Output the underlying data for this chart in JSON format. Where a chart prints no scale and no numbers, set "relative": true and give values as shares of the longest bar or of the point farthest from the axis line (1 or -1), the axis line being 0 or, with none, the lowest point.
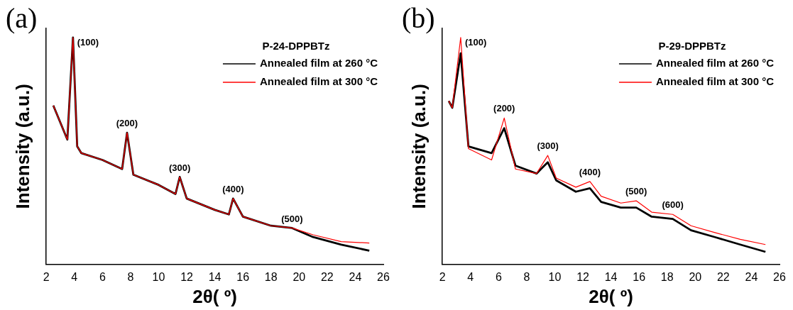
{
  "chart_data": [
    {
      "type": "line",
      "title": "(a)",
      "xlabel": "2θ( º)",
      "ylabel": "Intensity (a.u.)",
      "legend_title": "P-24-DPPBTz",
      "legend": "top right",
      "relative": true,
      "grid": false,
      "marker": "none",
      "line_style": "solid",
      "xlim": [
        2,
        26
      ],
      "xticks": [
        2,
        4,
        6,
        8,
        10,
        12,
        14,
        16,
        18,
        20,
        22,
        24,
        26
      ],
      "x": [
        2.5,
        3.5,
        3.9,
        4.2,
        4.5,
        6,
        7.4,
        7.75,
        8.2,
        10,
        11.2,
        11.5,
        12,
        14,
        15,
        15.3,
        16,
        18,
        19.5,
        21,
        23,
        25
      ],
      "series": [
        {
          "name": "Annealed film at 260 °C",
          "color": "#000000",
          "values": [
            0.7,
            0.55,
            1.0,
            0.52,
            0.49,
            0.46,
            0.42,
            0.58,
            0.395,
            0.35,
            0.31,
            0.385,
            0.29,
            0.24,
            0.22,
            0.29,
            0.21,
            0.17,
            0.16,
            0.12,
            0.087,
            0.06
          ]
        },
        {
          "name": "Annealed film at 300 °C",
          "color": "#ff0000",
          "values": [
            0.7,
            0.55,
            1.0,
            0.52,
            0.49,
            0.46,
            0.42,
            0.58,
            0.395,
            0.35,
            0.31,
            0.385,
            0.29,
            0.24,
            0.22,
            0.29,
            0.21,
            0.17,
            0.16,
            0.13,
            0.1,
            0.094
          ]
        }
      ],
      "annotations": [
        {
          "text": "(100)",
          "x": 3.9,
          "y": 1.0
        },
        {
          "text": "(200)",
          "x": 7.75,
          "y": 0.58
        },
        {
          "text": "(300)",
          "x": 11.5,
          "y": 0.385
        },
        {
          "text": "(400)",
          "x": 15.3,
          "y": 0.29
        },
        {
          "text": "(500)",
          "x": 19.5,
          "y": 0.16
        }
      ]
    },
    {
      "type": "line",
      "title": "(b)",
      "xlabel": "2θ( º)",
      "ylabel": "Intensity (a.u.)",
      "legend_title": "P-29-DPPBTz",
      "legend": "top right",
      "relative": true,
      "grid": false,
      "marker": "none",
      "line_style": "solid",
      "xlim": [
        2,
        26
      ],
      "xticks": [
        2,
        4,
        6,
        8,
        10,
        12,
        14,
        16,
        18,
        20,
        22,
        24,
        26
      ],
      "x": [
        2.45,
        2.7,
        3.3,
        3.85,
        5.5,
        6.4,
        7.2,
        8.7,
        9.5,
        10.1,
        11.5,
        12.5,
        13.3,
        14.7,
        15.8,
        16.9,
        18.4,
        19.7,
        21.4,
        23.2,
        25
      ],
      "series": [
        {
          "name": "Annealed film at 260 °C",
          "color": "#000000",
          "values": [
            0.72,
            0.69,
            0.93,
            0.52,
            0.49,
            0.6,
            0.435,
            0.4,
            0.45,
            0.37,
            0.32,
            0.335,
            0.275,
            0.25,
            0.25,
            0.21,
            0.2,
            0.15,
            0.12,
            0.087,
            0.055
          ]
        },
        {
          "name": "Annealed film at 300 °C",
          "color": "#ff0000",
          "values": [
            0.72,
            0.69,
            1.0,
            0.51,
            0.46,
            0.645,
            0.42,
            0.4,
            0.48,
            0.38,
            0.34,
            0.365,
            0.3,
            0.27,
            0.28,
            0.23,
            0.22,
            0.17,
            0.14,
            0.11,
            0.087
          ]
        }
      ],
      "annotations": [
        {
          "text": "(100)",
          "x": 3.3,
          "y": 1.0
        },
        {
          "text": "(200)",
          "x": 6.4,
          "y": 0.645
        },
        {
          "text": "(300)",
          "x": 9.5,
          "y": 0.48
        },
        {
          "text": "(400)",
          "x": 12.5,
          "y": 0.365
        },
        {
          "text": "(500)",
          "x": 15.8,
          "y": 0.28
        },
        {
          "text": "(600)",
          "x": 18.4,
          "y": 0.22
        }
      ]
    }
  ]
}
